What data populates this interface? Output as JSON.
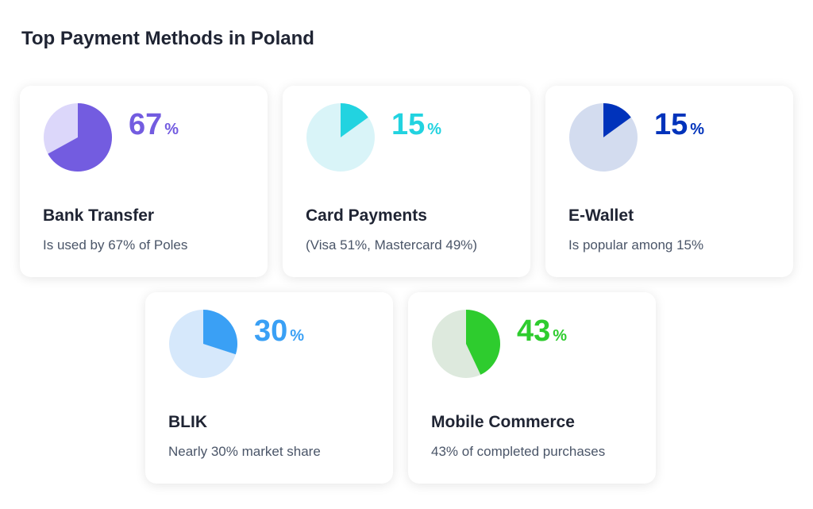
{
  "title": "Top Payment Methods in Poland",
  "chart_data": {
    "type": "pie",
    "title": "Top Payment Methods in Poland",
    "items": [
      {
        "name": "Bank Transfer",
        "value": 67,
        "percent_symbol": "%",
        "description": "Is used by 67% of Poles",
        "color": "#735ce0",
        "bg": "#dcd7fa"
      },
      {
        "name": "Card Payments",
        "value": 15,
        "percent_symbol": "%",
        "description": "(Visa 51%, Mastercard 49%)",
        "color": "#22d3e0",
        "bg": "#d9f4f8"
      },
      {
        "name": "E-Wallet",
        "value": 15,
        "percent_symbol": "%",
        "description": "Is popular among 15%",
        "color": "#0033bb",
        "bg": "#d3dcef"
      },
      {
        "name": "BLIK",
        "value": 30,
        "percent_symbol": "%",
        "description": "Nearly 30% market share",
        "color": "#3aa0f5",
        "bg": "#d6e8fb"
      },
      {
        "name": "Mobile Commerce",
        "value": 43,
        "percent_symbol": "%",
        "description": "43% of completed purchases",
        "color": "#2ecc2e",
        "bg": "#dde9dd"
      }
    ]
  }
}
